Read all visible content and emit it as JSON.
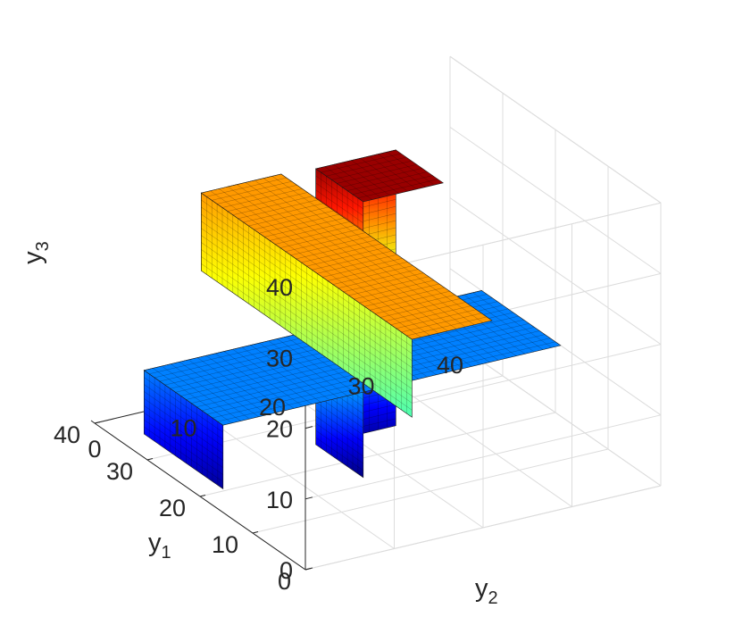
{
  "chart_data": {
    "type": "3d-voxel",
    "title": "",
    "xlabel": "y",
    "xlabel_sub": "1",
    "ylabel": "y",
    "ylabel_sub": "2",
    "zlabel": "y",
    "zlabel_sub": "3",
    "x_ticks": [
      "0",
      "10",
      "20",
      "30",
      "40"
    ],
    "y_ticks": [
      "0",
      "10",
      "20",
      "30",
      "40"
    ],
    "z_ticks": [
      "0",
      "10",
      "20",
      "30",
      "40"
    ],
    "xlim": [
      0,
      40
    ],
    "ylim": [
      0,
      40
    ],
    "zlim": [
      0,
      40
    ],
    "grid": true,
    "colormap": "jet",
    "color_by": "y3",
    "blocks": [
      {
        "name": "bar-along-y2",
        "y1": [
          19,
          34
        ],
        "y2": [
          2,
          40
        ],
        "y3": [
          1,
          10
        ]
      },
      {
        "name": "bar-along-y1",
        "y1": [
          0,
          40
        ],
        "y2": [
          12,
          21
        ],
        "y3": [
          18,
          29
        ]
      },
      {
        "name": "vertical-column",
        "y1": [
          16,
          25
        ],
        "y2": [
          16,
          25
        ],
        "y3": [
          0,
          39
        ]
      }
    ]
  }
}
